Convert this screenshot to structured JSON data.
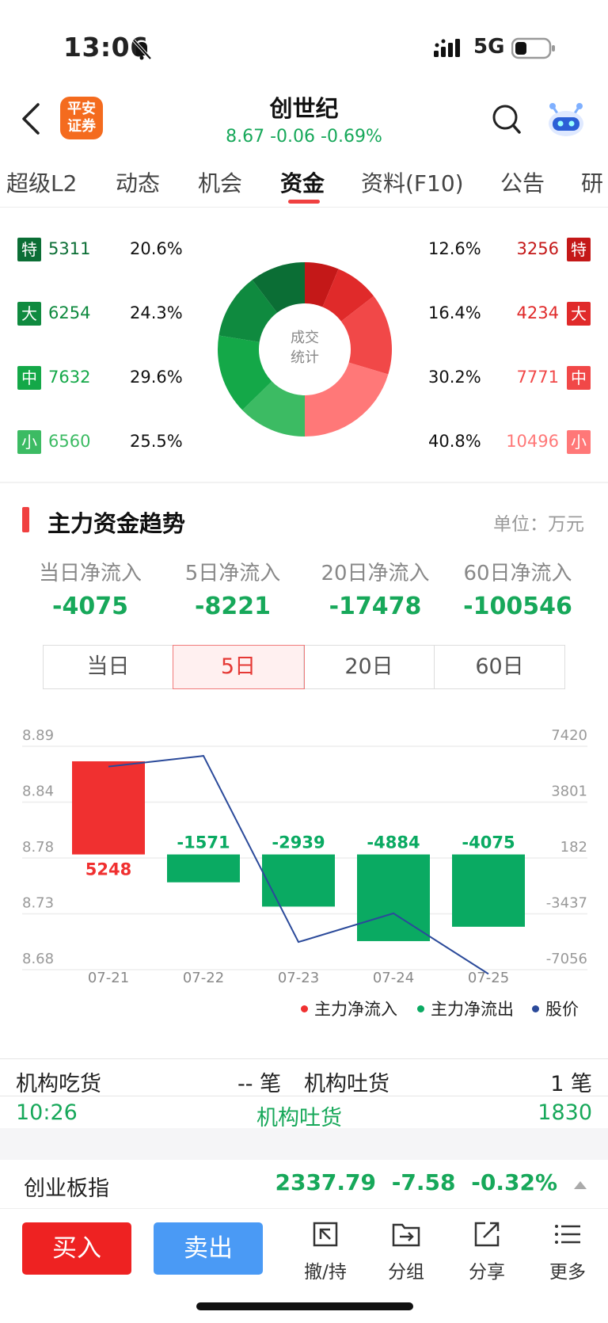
{
  "status_bar": {
    "time": "13:06",
    "network": "5G"
  },
  "header": {
    "title": "创世纪",
    "quote": "8.67 -0.06 -0.69%",
    "logo_text": "平安\n证券"
  },
  "tabs": [
    "超级L2",
    "动态",
    "机会",
    "资金",
    "资料(F10)",
    "公告",
    "研"
  ],
  "active_tab": "资金",
  "volume_stats": {
    "center_label_line1": "成交",
    "center_label_line2": "统计",
    "sell_side": [
      {
        "badge": "特",
        "value": "5311",
        "pct": "20.6%"
      },
      {
        "badge": "大",
        "value": "6254",
        "pct": "24.3%"
      },
      {
        "badge": "中",
        "value": "7632",
        "pct": "29.6%"
      },
      {
        "badge": "小",
        "value": "6560",
        "pct": "25.5%"
      }
    ],
    "buy_side": [
      {
        "badge": "特",
        "value": "3256",
        "pct": "12.6%"
      },
      {
        "badge": "大",
        "value": "4234",
        "pct": "16.4%"
      },
      {
        "badge": "中",
        "value": "7771",
        "pct": "30.2%"
      },
      {
        "badge": "小",
        "value": "10496",
        "pct": "40.8%"
      }
    ],
    "colors": {
      "sell": [
        "#0b6e35",
        "#0f8a3f",
        "#14a848",
        "#3cbb63"
      ],
      "buy": [
        "#c41818",
        "#e02a2a",
        "#f14848",
        "#ff7878"
      ]
    }
  },
  "trend": {
    "title": "主力资金趋势",
    "unit": "单位：万元",
    "flows": [
      {
        "label": "当日净流入",
        "value": "-4075"
      },
      {
        "label": "5日净流入",
        "value": "-8221"
      },
      {
        "label": "20日净流入",
        "value": "-17478"
      },
      {
        "label": "60日净流入",
        "value": "-100546"
      }
    ],
    "periods": [
      "当日",
      "5日",
      "20日",
      "60日"
    ],
    "active_period": "5日",
    "legend": [
      "主力净流入",
      "主力净流出",
      "股价"
    ]
  },
  "chart_data": {
    "type": "bar",
    "categories": [
      "07-21",
      "07-22",
      "07-23",
      "07-24",
      "07-25"
    ],
    "series": [
      {
        "name": "主力净流入",
        "type": "bar",
        "values": [
          5248,
          -1571,
          -2939,
          -4884,
          -4075
        ]
      },
      {
        "name": "股价",
        "type": "line",
        "values": [
          8.865,
          8.875,
          8.7,
          8.727,
          8.67
        ]
      }
    ],
    "bar_labels": [
      "5248",
      "-1571",
      "-2939",
      "-4884",
      "-4075"
    ],
    "y_left_ticks": [
      "8.89",
      "8.84",
      "8.78",
      "8.73",
      "8.68"
    ],
    "y_left_range": [
      8.68,
      8.89
    ],
    "y_right_ticks": [
      "7420",
      "3801",
      "182",
      "-3437",
      "-7056"
    ],
    "y_right_range": [
      -7056,
      7420
    ],
    "colors": {
      "inflow": "#f03030",
      "outflow": "#0aaa62",
      "price": "#2b4a9a"
    },
    "grid": true,
    "legend_position": "bottom-right"
  },
  "institution": {
    "buy_label": "机构吃货",
    "buy_value": "-- 笔",
    "sell_label": "机构吐货",
    "sell_value": "1 笔",
    "record": {
      "time": "10:26",
      "type": "机构吐货",
      "amount": "1830"
    }
  },
  "index": {
    "name": "创业板指",
    "value": "2337.79",
    "change": "-7.58",
    "pct": "-0.32%"
  },
  "bottom_bar": {
    "buy": "买入",
    "sell": "卖出",
    "tools": [
      {
        "label": "撤/持",
        "icon": "cancel-hold-icon"
      },
      {
        "label": "分组",
        "icon": "folder-group-icon"
      },
      {
        "label": "分享",
        "icon": "share-icon"
      },
      {
        "label": "更多",
        "icon": "more-list-icon"
      }
    ]
  }
}
